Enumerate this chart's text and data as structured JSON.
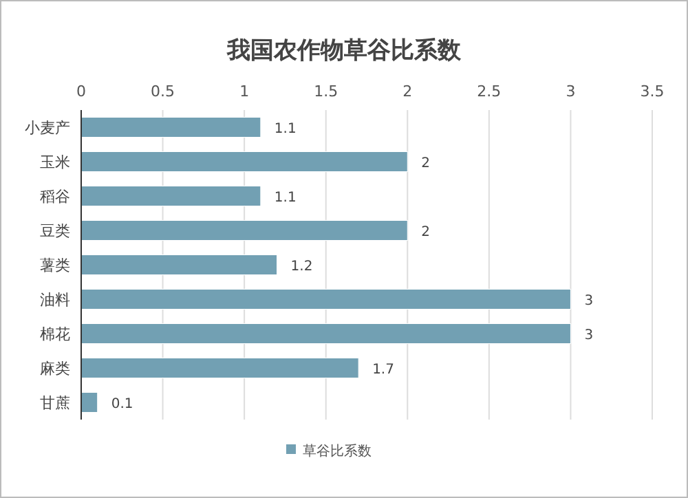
{
  "chart_data": {
    "type": "bar",
    "orientation": "horizontal",
    "title": "我国农作物草谷比系数",
    "categories": [
      "小麦产",
      "玉米",
      "稻谷",
      "豆类",
      "薯类",
      "油料",
      "棉花",
      "麻类",
      "甘蔗"
    ],
    "series": [
      {
        "name": "草谷比系数",
        "color": "#72a0b3",
        "values": [
          1.1,
          2,
          1.1,
          2,
          1.2,
          3,
          3,
          1.7,
          0.1
        ]
      }
    ],
    "xlim": [
      0,
      3.5
    ],
    "xticks": [
      0,
      0.5,
      1,
      1.5,
      2,
      2.5,
      3,
      3.5
    ],
    "grid": "x",
    "legend": "bottom",
    "data_labels": true
  }
}
